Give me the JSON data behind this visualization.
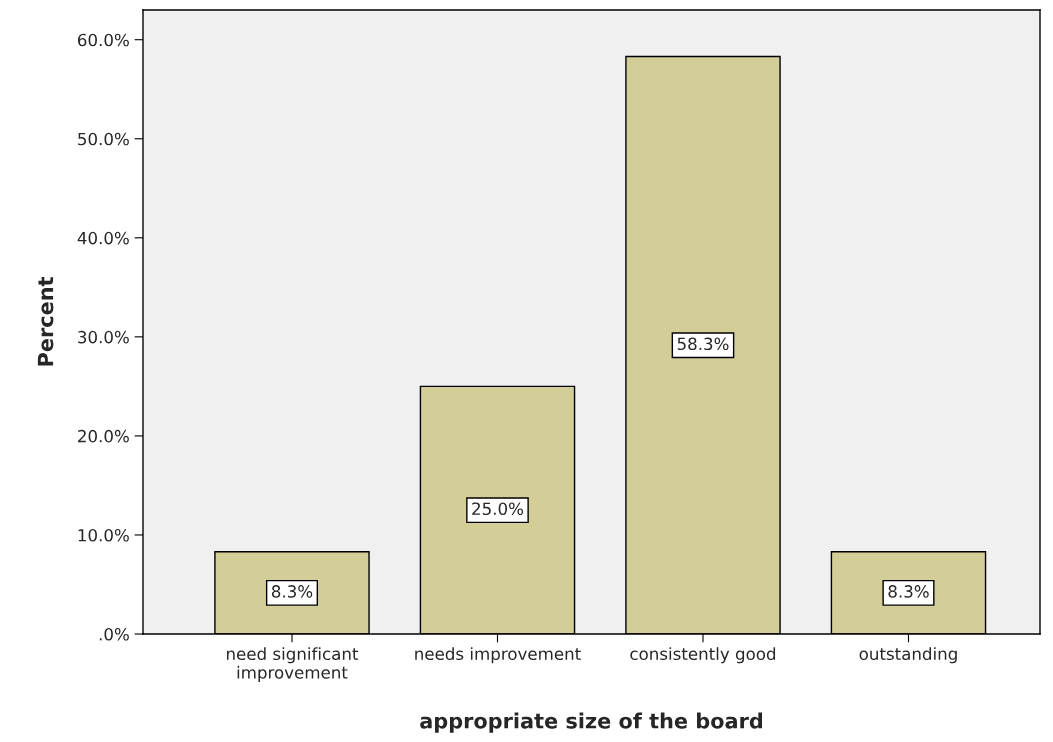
{
  "chart_data": {
    "type": "bar",
    "xlabel": "appropriate size of the board",
    "ylabel": "Percent",
    "categories": [
      "need significant\nimprovement",
      "needs improvement",
      "consistently good",
      "outstanding"
    ],
    "values": [
      8.3,
      25.0,
      58.3,
      8.3
    ],
    "value_labels": [
      "8.3%",
      "25.0%",
      "58.3%",
      "8.3%"
    ],
    "color": "#d3ce97",
    "ylim": [
      0,
      63
    ],
    "yticks": [
      {
        "value": 0,
        "label": ".0%"
      },
      {
        "value": 10,
        "label": "10.0%"
      },
      {
        "value": 20,
        "label": "20.0%"
      },
      {
        "value": 30,
        "label": "30.0%"
      },
      {
        "value": 40,
        "label": "40.0%"
      },
      {
        "value": 50,
        "label": "50.0%"
      },
      {
        "value": 60,
        "label": "60.0%"
      }
    ],
    "grid": false,
    "legend": false
  }
}
